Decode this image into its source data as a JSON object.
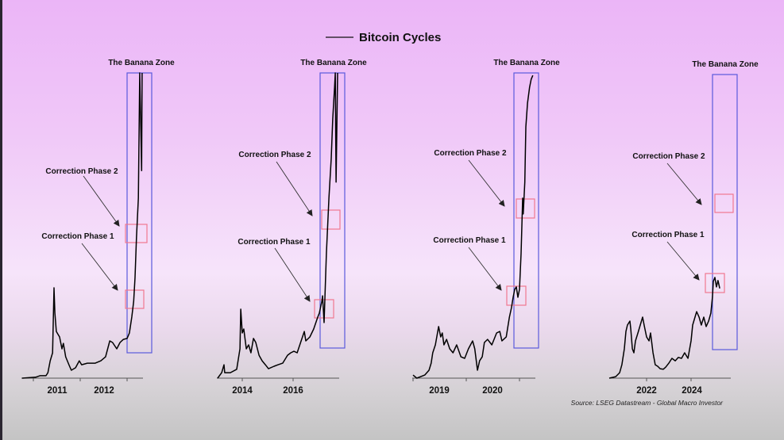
{
  "chart_data": [
    {
      "type": "line",
      "title": "Bitcoin Cycles",
      "series_name": "Bitcoin Cycles",
      "tick_labels": [
        "2011",
        "2012"
      ],
      "zone_label": "The Banana Zone",
      "annotations": [
        "Correction Phase 2",
        "Correction Phase 1"
      ],
      "x": [
        2010.76,
        2011.05,
        2011.14,
        2011.27,
        2011.31,
        2011.36,
        2011.41,
        2011.44,
        2011.46,
        2011.49,
        2011.56,
        2011.61,
        2011.64,
        2011.69,
        2011.76,
        2011.81,
        2011.9,
        2011.98,
        2012.03,
        2012.15,
        2012.32,
        2012.44,
        2012.54,
        2012.63,
        2012.69,
        2012.78,
        2012.85,
        2012.92,
        2013.0,
        2013.05,
        2013.1,
        2013.14,
        2013.17,
        2013.2,
        2013.24,
        2013.27,
        2013.31,
        2013.32
      ],
      "y": [
        0,
        0.3,
        0.8,
        0.8,
        1.8,
        5.7,
        8.3,
        29.6,
        21.3,
        15.3,
        13.5,
        9.6,
        11.4,
        7,
        4.4,
        2.6,
        3.4,
        5.7,
        4.4,
        4.9,
        4.9,
        5.7,
        7,
        12.2,
        11.7,
        9.6,
        11.7,
        12.7,
        13,
        14.8,
        20,
        25.2,
        33,
        46,
        59,
        100,
        68,
        100
      ]
    },
    {
      "type": "line",
      "tick_labels": [
        "2014",
        "2016"
      ],
      "zone_label": "The Banana Zone",
      "annotations": [
        "Correction Phase 2",
        "Correction Phase 1"
      ],
      "x": [
        2013.03,
        2013.19,
        2013.28,
        2013.31,
        2013.53,
        2013.78,
        2013.91,
        2013.94,
        2014.0,
        2014.06,
        2014.16,
        2014.25,
        2014.34,
        2014.44,
        2014.53,
        2014.66,
        2014.78,
        2014.91,
        2015.03,
        2015.25,
        2015.41,
        2015.59,
        2015.78,
        2015.91,
        2016.03,
        2016.16,
        2016.44,
        2016.5,
        2016.66,
        2016.81,
        2016.97,
        2017.03,
        2017.13,
        2017.16,
        2017.22,
        2017.31,
        2017.41,
        2017.5,
        2017.56,
        2017.63,
        2017.66,
        2017.69,
        2017.75
      ],
      "y": [
        0,
        1.8,
        4.4,
        1.8,
        1.8,
        2.9,
        9.6,
        22.6,
        14.8,
        16.1,
        9.6,
        10.9,
        8.3,
        13,
        11.7,
        7.5,
        5.7,
        4.4,
        3.1,
        3.9,
        4.4,
        4.9,
        7.5,
        8.3,
        8.8,
        8.3,
        15.3,
        12.2,
        13.5,
        16.1,
        20,
        21.3,
        25.2,
        27,
        18.2,
        40.8,
        59,
        72,
        85,
        95.3,
        100,
        64.2,
        100
      ]
    },
    {
      "type": "line",
      "tick_labels": [
        "2019",
        "2020"
      ],
      "zone_label": "The Banana Zone",
      "annotations": [
        "Correction Phase 2",
        "Correction Phase 1"
      ],
      "x": [
        2019.0,
        2019.07,
        2019.22,
        2019.3,
        2019.34,
        2019.37,
        2019.42,
        2019.48,
        2019.52,
        2019.55,
        2019.58,
        2019.63,
        2019.69,
        2019.75,
        2019.82,
        2019.9,
        2019.97,
        2020.04,
        2020.12,
        2020.16,
        2020.21,
        2020.25,
        2020.3,
        2020.34,
        2020.4,
        2020.48,
        2020.57,
        2020.63,
        2020.67,
        2020.75,
        2020.81,
        2020.85,
        2020.88,
        2020.91,
        2020.94,
        2020.97,
        2021.0,
        2021.03,
        2021.06,
        2021.07,
        2021.1,
        2021.12,
        2021.15,
        2021.19,
        2021.22,
        2021.25
      ],
      "y": [
        1,
        0,
        1,
        2.6,
        4.9,
        8.3,
        10.9,
        16.9,
        13.5,
        14.8,
        10.9,
        12.7,
        9.6,
        8.3,
        10.9,
        7,
        6.5,
        9.6,
        12.2,
        9.6,
        2.6,
        5.7,
        7,
        11.7,
        12.7,
        10.9,
        14.8,
        15.3,
        12.2,
        13.5,
        20,
        23.1,
        26.5,
        29.1,
        29.9,
        26.5,
        29.1,
        40.8,
        59,
        53.8,
        64.2,
        82.3,
        90.1,
        95.3,
        97.9,
        99.2
      ]
    },
    {
      "type": "line",
      "tick_labels": [
        "2022",
        "2024"
      ],
      "zone_label": "The Banana Zone",
      "annotations": [
        "Correction Phase 2",
        "Correction Phase 1"
      ],
      "x": [
        2020.32,
        2020.61,
        2020.79,
        2020.89,
        2021.0,
        2021.07,
        2021.14,
        2021.25,
        2021.29,
        2021.36,
        2021.43,
        2021.5,
        2021.61,
        2021.82,
        2021.89,
        2022.0,
        2022.11,
        2022.18,
        2022.29,
        2022.39,
        2022.5,
        2022.61,
        2022.75,
        2022.86,
        2023.0,
        2023.14,
        2023.29,
        2023.43,
        2023.57,
        2023.71,
        2023.86,
        2024.0,
        2024.07,
        2024.25,
        2024.36,
        2024.46,
        2024.57,
        2024.68,
        2024.79,
        2024.89,
        2024.96,
        2025.0,
        2025.07,
        2025.14,
        2025.21,
        2025.29
      ],
      "y": [
        0,
        0.5,
        1.8,
        4.4,
        9.6,
        15.3,
        17.4,
        18.7,
        16.1,
        9.6,
        8.3,
        12.2,
        14.8,
        20,
        17.4,
        13.5,
        12.2,
        14.8,
        8.3,
        4.4,
        3.9,
        3.1,
        2.9,
        3.6,
        4.9,
        6.5,
        5.7,
        6.8,
        6.5,
        8.3,
        6.5,
        12.2,
        17.4,
        21.8,
        20,
        17.4,
        20,
        16.9,
        18.7,
        21.3,
        26.5,
        31.7,
        33,
        29.9,
        32,
        29.4
      ]
    }
  ],
  "legend": {
    "label": "Bitcoin Cycles",
    "position": "top-center"
  },
  "source": "Source: LSEG Datastream - Global Macro Investor",
  "colors": {
    "line": "#000000",
    "zone_box": "#5a5adc",
    "correction_box": "#f07890",
    "arrow": "#333333"
  }
}
